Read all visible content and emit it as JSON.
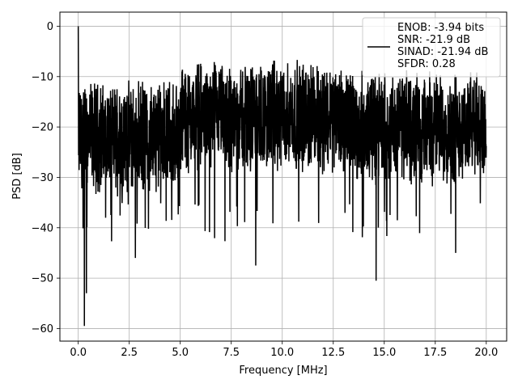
{
  "chart_data": {
    "type": "line",
    "title": "",
    "xlabel": "Frequency [MHz]",
    "ylabel": "PSD [dB]",
    "xlim": [
      -0.9,
      21.0
    ],
    "ylim": [
      -62.5,
      2.8
    ],
    "xticks": [
      0.0,
      2.5,
      5.0,
      7.5,
      10.0,
      12.5,
      15.0,
      17.5,
      20.0
    ],
    "xtick_labels": [
      "0.0",
      "2.5",
      "5.0",
      "7.5",
      "10.0",
      "12.5",
      "15.0",
      "17.5",
      "20.0"
    ],
    "yticks": [
      0,
      -10,
      -20,
      -30,
      -40,
      -50,
      -60
    ],
    "ytick_labels": [
      "0",
      "−10",
      "−20",
      "−30",
      "−40",
      "−50",
      "−60"
    ],
    "grid": true,
    "legend_position": "top-right",
    "line_color": "#000000",
    "series": [
      {
        "legend_lines": [
          "ENOB: -3.94 bits",
          "SNR: -21.9 dB",
          "SINAD: -21.94 dB",
          "SFDR: 0.28"
        ],
        "x_range": [
          0.0,
          20.0
        ],
        "noise_floor_db": -20,
        "noise_band_db": [
          -33,
          -5
        ],
        "peaks": [
          {
            "x": 0.0,
            "y": 0.0
          }
        ],
        "notable_minima": [
          {
            "x": 0.3,
            "y": -59.5
          },
          {
            "x": 0.4,
            "y": -53.0
          },
          {
            "x": 2.8,
            "y": -46.0
          },
          {
            "x": 8.7,
            "y": -47.5
          },
          {
            "x": 14.6,
            "y": -50.5
          },
          {
            "x": 18.5,
            "y": -45.0
          }
        ]
      }
    ]
  }
}
